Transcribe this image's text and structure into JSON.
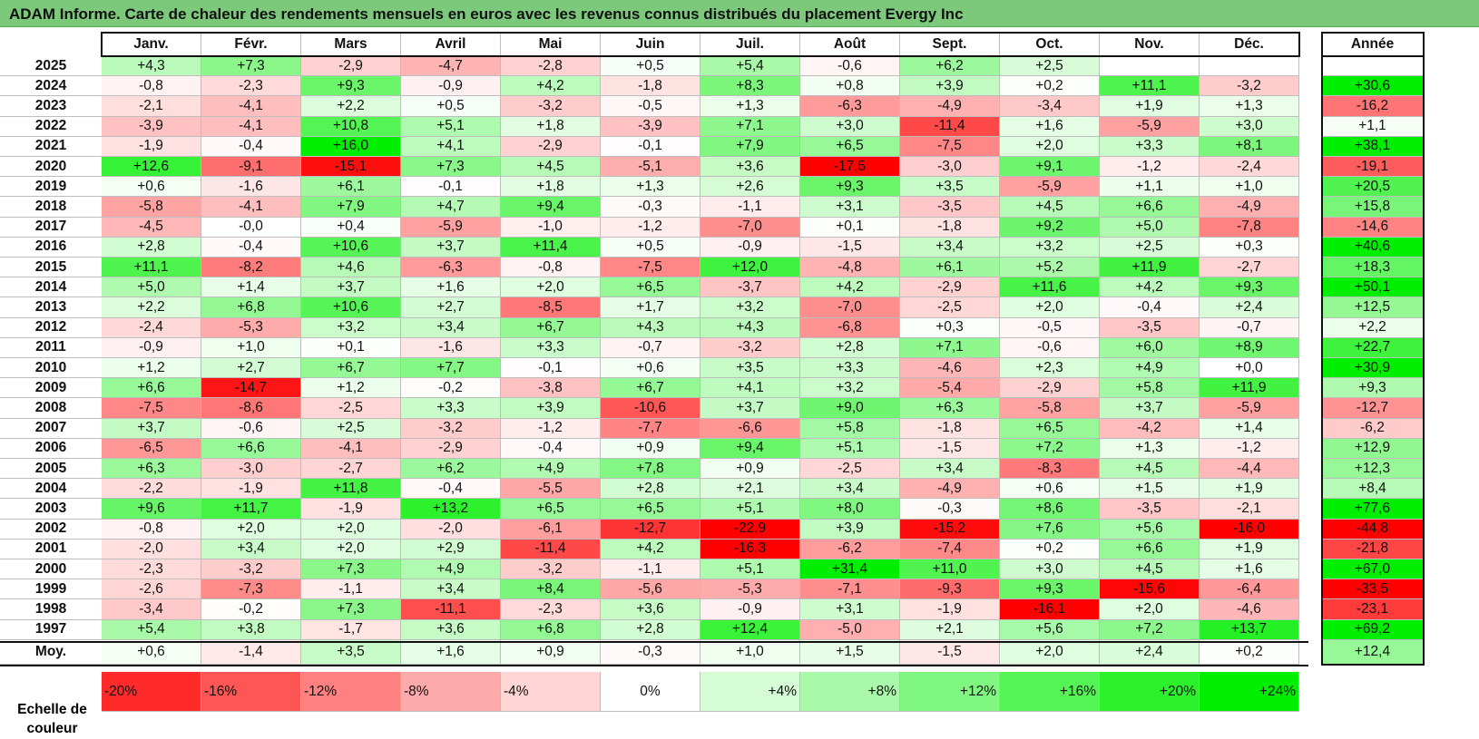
{
  "title": "ADAM Informe. Carte de chaleur des rendements mensuels en euros avec les revenus connus distribués du placement Evergy Inc",
  "chart_data": {
    "type": "heatmap",
    "title": "ADAM Informe. Carte de chaleur des rendements mensuels en euros avec les revenus connus distribués du placement Evergy Inc",
    "columns": [
      "Janv.",
      "Févr.",
      "Mars",
      "Avril",
      "Mai",
      "Juin",
      "Juil.",
      "Août",
      "Sept.",
      "Oct.",
      "Nov.",
      "Déc."
    ],
    "year_column_label": "Année",
    "rows": [
      {
        "year": "2025",
        "values": [
          "+4,3",
          "+7,3",
          "-2,9",
          "-4,7",
          "-2,8",
          "+0,5",
          "+5,4",
          "-0,6",
          "+6,2",
          "+2,5",
          "",
          ""
        ],
        "annual": ""
      },
      {
        "year": "2024",
        "values": [
          "-0,8",
          "-2,3",
          "+9,3",
          "-0,9",
          "+4,2",
          "-1,8",
          "+8,3",
          "+0,8",
          "+3,9",
          "+0,2",
          "+11,1",
          "-3,2"
        ],
        "annual": "+30,6"
      },
      {
        "year": "2023",
        "values": [
          "-2,1",
          "-4,1",
          "+2,2",
          "+0,5",
          "-3,2",
          "-0,5",
          "+1,3",
          "-6,3",
          "-4,9",
          "-3,4",
          "+1,9",
          "+1,3"
        ],
        "annual": "-16,2"
      },
      {
        "year": "2022",
        "values": [
          "-3,9",
          "-4,1",
          "+10,8",
          "+5,1",
          "+1,8",
          "-3,9",
          "+7,1",
          "+3,0",
          "-11,4",
          "+1,6",
          "-5,9",
          "+3,0"
        ],
        "annual": "+1,1"
      },
      {
        "year": "2021",
        "values": [
          "-1,9",
          "-0,4",
          "+16,0",
          "+4,1",
          "-2,9",
          "-0,1",
          "+7,9",
          "+6,5",
          "-7,5",
          "+2,0",
          "+3,3",
          "+8,1"
        ],
        "annual": "+38,1"
      },
      {
        "year": "2020",
        "values": [
          "+12,6",
          "-9,1",
          "-15,1",
          "+7,3",
          "+4,5",
          "-5,1",
          "+3,6",
          "-17,5",
          "-3,0",
          "+9,1",
          "-1,2",
          "-2,4"
        ],
        "annual": "-19,1"
      },
      {
        "year": "2019",
        "values": [
          "+0,6",
          "-1,6",
          "+6,1",
          "-0,1",
          "+1,8",
          "+1,3",
          "+2,6",
          "+9,3",
          "+3,5",
          "-5,9",
          "+1,1",
          "+1,0"
        ],
        "annual": "+20,5"
      },
      {
        "year": "2018",
        "values": [
          "-5,8",
          "-4,1",
          "+7,9",
          "+4,7",
          "+9,4",
          "-0,3",
          "-1,1",
          "+3,1",
          "-3,5",
          "+4,5",
          "+6,6",
          "-4,9"
        ],
        "annual": "+15,8"
      },
      {
        "year": "2017",
        "values": [
          "-4,5",
          "-0,0",
          "+0,4",
          "-5,9",
          "-1,0",
          "-1,2",
          "-7,0",
          "+0,1",
          "-1,8",
          "+9,2",
          "+5,0",
          "-7,8"
        ],
        "annual": "-14,6"
      },
      {
        "year": "2016",
        "values": [
          "+2,8",
          "-0,4",
          "+10,6",
          "+3,7",
          "+11,4",
          "+0,5",
          "-0,9",
          "-1,5",
          "+3,4",
          "+3,2",
          "+2,5",
          "+0,3"
        ],
        "annual": "+40,6"
      },
      {
        "year": "2015",
        "values": [
          "+11,1",
          "-8,2",
          "+4,6",
          "-6,3",
          "-0,8",
          "-7,5",
          "+12,0",
          "-4,8",
          "+6,1",
          "+5,2",
          "+11,9",
          "-2,7"
        ],
        "annual": "+18,3"
      },
      {
        "year": "2014",
        "values": [
          "+5,0",
          "+1,4",
          "+3,7",
          "+1,6",
          "+2,0",
          "+6,5",
          "-3,7",
          "+4,2",
          "-2,9",
          "+11,6",
          "+4,2",
          "+9,3"
        ],
        "annual": "+50,1"
      },
      {
        "year": "2013",
        "values": [
          "+2,2",
          "+6,8",
          "+10,6",
          "+2,7",
          "-8,5",
          "+1,7",
          "+3,2",
          "-7,0",
          "-2,5",
          "+2,0",
          "-0,4",
          "+2,4"
        ],
        "annual": "+12,5"
      },
      {
        "year": "2012",
        "values": [
          "-2,4",
          "-5,3",
          "+3,2",
          "+3,4",
          "+6,7",
          "+4,3",
          "+4,3",
          "-6,8",
          "+0,3",
          "-0,5",
          "-3,5",
          "-0,7"
        ],
        "annual": "+2,2"
      },
      {
        "year": "2011",
        "values": [
          "-0,9",
          "+1,0",
          "+0,1",
          "-1,6",
          "+3,3",
          "-0,7",
          "-3,2",
          "+2,8",
          "+7,1",
          "-0,6",
          "+6,0",
          "+8,9"
        ],
        "annual": "+22,7"
      },
      {
        "year": "2010",
        "values": [
          "+1,2",
          "+2,7",
          "+6,7",
          "+7,7",
          "-0,1",
          "+0,6",
          "+3,5",
          "+3,3",
          "-4,6",
          "+2,3",
          "+4,9",
          "+0,0"
        ],
        "annual": "+30,9"
      },
      {
        "year": "2009",
        "values": [
          "+6,6",
          "-14,7",
          "+1,2",
          "-0,2",
          "-3,8",
          "+6,7",
          "+4,1",
          "+3,2",
          "-5,4",
          "-2,9",
          "+5,8",
          "+11,9"
        ],
        "annual": "+9,3"
      },
      {
        "year": "2008",
        "values": [
          "-7,5",
          "-8,6",
          "-2,5",
          "+3,3",
          "+3,9",
          "-10,6",
          "+3,7",
          "+9,0",
          "+6,3",
          "-5,8",
          "+3,7",
          "-5,9"
        ],
        "annual": "-12,7"
      },
      {
        "year": "2007",
        "values": [
          "+3,7",
          "-0,6",
          "+2,5",
          "-3,2",
          "-1,2",
          "-7,7",
          "-6,6",
          "+5,8",
          "-1,8",
          "+6,5",
          "-4,2",
          "+1,4"
        ],
        "annual": "-6,2"
      },
      {
        "year": "2006",
        "values": [
          "-6,5",
          "+6,6",
          "-4,1",
          "-2,9",
          "-0,4",
          "+0,9",
          "+9,4",
          "+5,1",
          "-1,5",
          "+7,2",
          "+1,3",
          "-1,2"
        ],
        "annual": "+12,9"
      },
      {
        "year": "2005",
        "values": [
          "+6,3",
          "-3,0",
          "-2,7",
          "+6,2",
          "+4,9",
          "+7,8",
          "+0,9",
          "-2,5",
          "+3,4",
          "-8,3",
          "+4,5",
          "-4,4"
        ],
        "annual": "+12,3"
      },
      {
        "year": "2004",
        "values": [
          "-2,2",
          "-1,9",
          "+11,8",
          "-0,4",
          "-5,5",
          "+2,8",
          "+2,1",
          "+3,4",
          "-4,9",
          "+0,6",
          "+1,5",
          "+1,9"
        ],
        "annual": "+8,4"
      },
      {
        "year": "2003",
        "values": [
          "+9,6",
          "+11,7",
          "-1,9",
          "+13,2",
          "+6,5",
          "+6,5",
          "+5,1",
          "+8,0",
          "-0,3",
          "+8,6",
          "-3,5",
          "-2,1"
        ],
        "annual": "+77,6"
      },
      {
        "year": "2002",
        "values": [
          "-0,8",
          "+2,0",
          "+2,0",
          "-2,0",
          "-6,1",
          "-12,7",
          "-22,9",
          "+3,9",
          "-15,2",
          "+7,6",
          "+5,6",
          "-16,0"
        ],
        "annual": "-44,8"
      },
      {
        "year": "2001",
        "values": [
          "-2,0",
          "+3,4",
          "+2,0",
          "+2,9",
          "-11,4",
          "+4,2",
          "-16,3",
          "-6,2",
          "-7,4",
          "+0,2",
          "+6,6",
          "+1,9"
        ],
        "annual": "-21,8"
      },
      {
        "year": "2000",
        "values": [
          "-2,3",
          "-3,2",
          "+7,3",
          "+4,9",
          "-3,2",
          "-1,1",
          "+5,1",
          "+31,4",
          "+11,0",
          "+3,0",
          "+4,5",
          "+1,6"
        ],
        "annual": "+67,0"
      },
      {
        "year": "1999",
        "values": [
          "-2,6",
          "-7,3",
          "-1,1",
          "+3,4",
          "+8,4",
          "-5,6",
          "-5,3",
          "-7,1",
          "-9,3",
          "+9,3",
          "-15,6",
          "-6,4"
        ],
        "annual": "-33,5"
      },
      {
        "year": "1998",
        "values": [
          "-3,4",
          "-0,2",
          "+7,3",
          "-11,1",
          "-2,3",
          "+3,6",
          "-0,9",
          "+3,1",
          "-1,9",
          "-16,1",
          "+2,0",
          "-4,6"
        ],
        "annual": "-23,1"
      },
      {
        "year": "1997",
        "values": [
          "+5,4",
          "+3,8",
          "-1,7",
          "+3,6",
          "+6,8",
          "+2,8",
          "+12,4",
          "-5,0",
          "+2,1",
          "+5,6",
          "+7,2",
          "+13,7"
        ],
        "annual": "+69,2"
      }
    ],
    "average": {
      "label": "Moy.",
      "values": [
        "+0,6",
        "-1,4",
        "+3,5",
        "+1,6",
        "+0,9",
        "-0,3",
        "+1,0",
        "+1,5",
        "-1,5",
        "+2,0",
        "+2,4",
        "+0,2"
      ],
      "annual": "+12,4"
    },
    "color_scale": {
      "label": "Echelle de couleur",
      "stops": [
        "-20%",
        "-16%",
        "-12%",
        "-8%",
        "-4%",
        "0%",
        "+4%",
        "+8%",
        "+12%",
        "+16%",
        "+20%",
        "+24%"
      ],
      "negative_color": "#ff0000",
      "neutral_color": "#ffffff",
      "positive_color": "#00ee00"
    }
  }
}
